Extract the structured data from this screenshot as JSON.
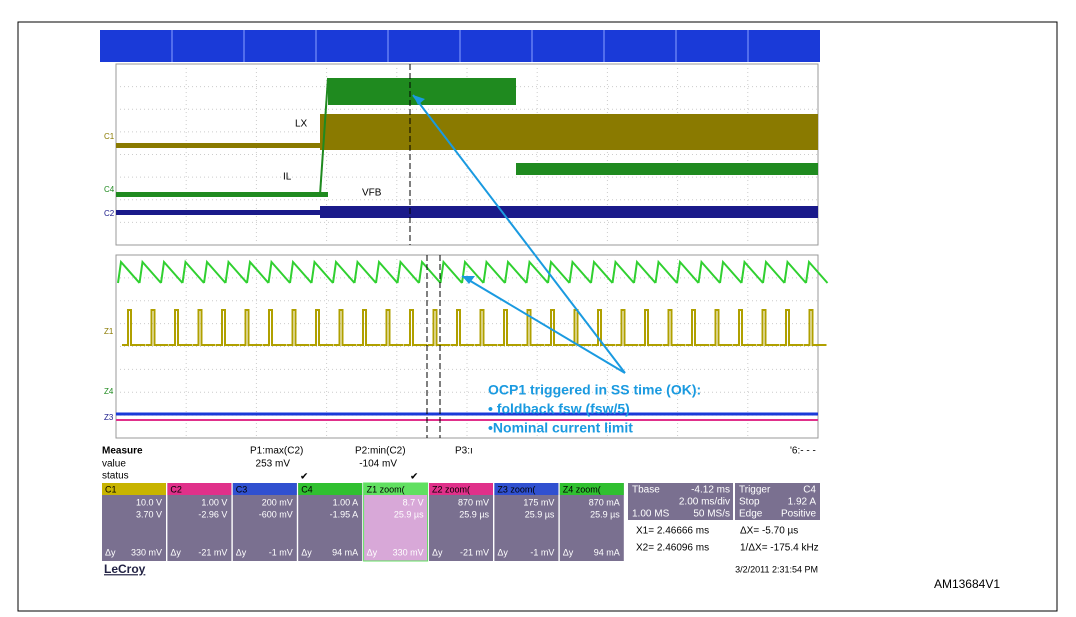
{
  "scope": {
    "channel_labels": [
      "C1",
      "C4",
      "C2",
      "Z1",
      "Z4",
      "Z3"
    ],
    "trace_labels": {
      "lx": "LX",
      "il": "IL",
      "vfb": "VFB"
    },
    "annotation": {
      "title": "OCP1 triggered in SS time (OK):",
      "bullet1": "• foldback fsw (fsw/5)",
      "bullet2": "•Nominal current limit"
    },
    "measure": {
      "title": "Measure",
      "row_value": "value",
      "row_status": "status",
      "params": [
        {
          "name": "P1:max(C2)",
          "value": "253 mV"
        },
        {
          "name": "P2:min(C2)",
          "value": "-104 mV"
        },
        {
          "name": "P3:ı"
        }
      ],
      "tail": "'6:- - -"
    },
    "channels": [
      {
        "name": "C1",
        "scale": "10.0 V",
        "offset": "3.70 V",
        "delta_label": "Δy",
        "delta": "330 mV",
        "color": "#c8b400"
      },
      {
        "name": "C2",
        "scale": "1.00 V",
        "offset": "-2.96 V",
        "delta_label": "Δy",
        "delta": "-21 mV",
        "color": "#e0308a"
      },
      {
        "name": "C3",
        "scale": "200 mV",
        "offset": "-600 mV",
        "delta_label": "Δy",
        "delta": "-1 mV",
        "color": "#3050d0"
      },
      {
        "name": "C4",
        "scale": "1.00 A",
        "offset": "-1.95 A",
        "delta_label": "Δy",
        "delta": "94 mA",
        "color": "#30c030"
      },
      {
        "name": "Z1 zoom(",
        "scale": "8.7 V",
        "offset": "25.9 µs",
        "delta_label": "Δy",
        "delta": "330 mV",
        "color": "#60e060"
      },
      {
        "name": "Z2 zoom(",
        "scale": "870 mV",
        "offset": "25.9 µs",
        "delta_label": "Δy",
        "delta": "-21 mV",
        "color": "#e0308a"
      },
      {
        "name": "Z3 zoom(",
        "scale": "175 mV",
        "offset": "25.9 µs",
        "delta_label": "Δy",
        "delta": "-1 mV",
        "color": "#3050d0"
      },
      {
        "name": "Z4 zoom(",
        "scale": "870 mA",
        "offset": "25.9 µs",
        "delta_label": "Δy",
        "delta": "94 mA",
        "color": "#30c030"
      }
    ],
    "timebase": {
      "label": "Tbase",
      "delay": "-4.12 ms",
      "div": "2.00 ms/div",
      "points": "1.00 MS",
      "rate": "50 MS/s"
    },
    "trigger": {
      "label": "Trigger",
      "source": "C4",
      "mode": "Stop",
      "level": "1.92 A",
      "type": "Edge",
      "slope": "Positive"
    },
    "cursors": {
      "x1": "X1= 2.46666 ms",
      "dx": "ΔX= -5.70 µs",
      "x2": "X2= 2.46096 ms",
      "inv": "1/ΔX= -175.4 kHz"
    },
    "brand": "LeCroy",
    "timestamp": "3/2/2011 2:31:54 PM"
  },
  "figure_id": "AM13684V1"
}
